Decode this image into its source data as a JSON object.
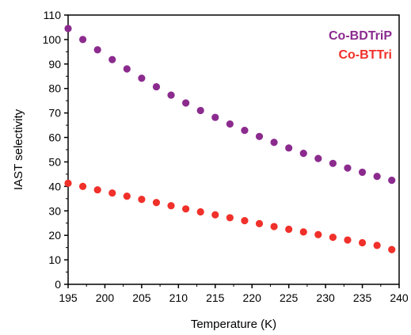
{
  "chart_data": {
    "type": "scatter",
    "title": "",
    "xlabel": "Temperature (K)",
    "ylabel": "IAST selectivity",
    "xlim": [
      195,
      240
    ],
    "ylim": [
      0,
      110
    ],
    "xticks": [
      195,
      200,
      205,
      210,
      215,
      220,
      225,
      230,
      235,
      240
    ],
    "yticks": [
      0,
      10,
      20,
      30,
      40,
      50,
      60,
      70,
      80,
      90,
      100,
      110
    ],
    "grid": false,
    "legend_position": "top-right",
    "series": [
      {
        "name": "Co-BDTriP",
        "color": "#8b2b8e",
        "x": [
          195,
          197,
          199,
          201,
          203,
          205,
          207,
          209,
          211,
          213,
          215,
          217,
          219,
          221,
          223,
          225,
          227,
          229,
          231,
          233,
          235,
          237,
          239
        ],
        "y": [
          104.5,
          100,
          95.8,
          91.8,
          88,
          84.2,
          80.7,
          77.3,
          74.1,
          71,
          68.2,
          65.5,
          62.9,
          60.4,
          58,
          55.7,
          53.5,
          51.4,
          49.4,
          47.5,
          45.8,
          44.1,
          42.5
        ]
      },
      {
        "name": "Co-BTTri",
        "color": "#f0302a",
        "x": [
          195,
          197,
          199,
          201,
          203,
          205,
          207,
          209,
          211,
          213,
          215,
          217,
          219,
          221,
          223,
          225,
          227,
          229,
          231,
          233,
          235,
          237,
          239
        ],
        "y": [
          41.3,
          40,
          38.6,
          37.3,
          36,
          34.7,
          33.4,
          32.1,
          30.8,
          29.6,
          28.4,
          27.2,
          26,
          24.8,
          23.6,
          22.5,
          21.4,
          20.3,
          19.2,
          18.1,
          17,
          15.9,
          14.2
        ]
      }
    ]
  }
}
